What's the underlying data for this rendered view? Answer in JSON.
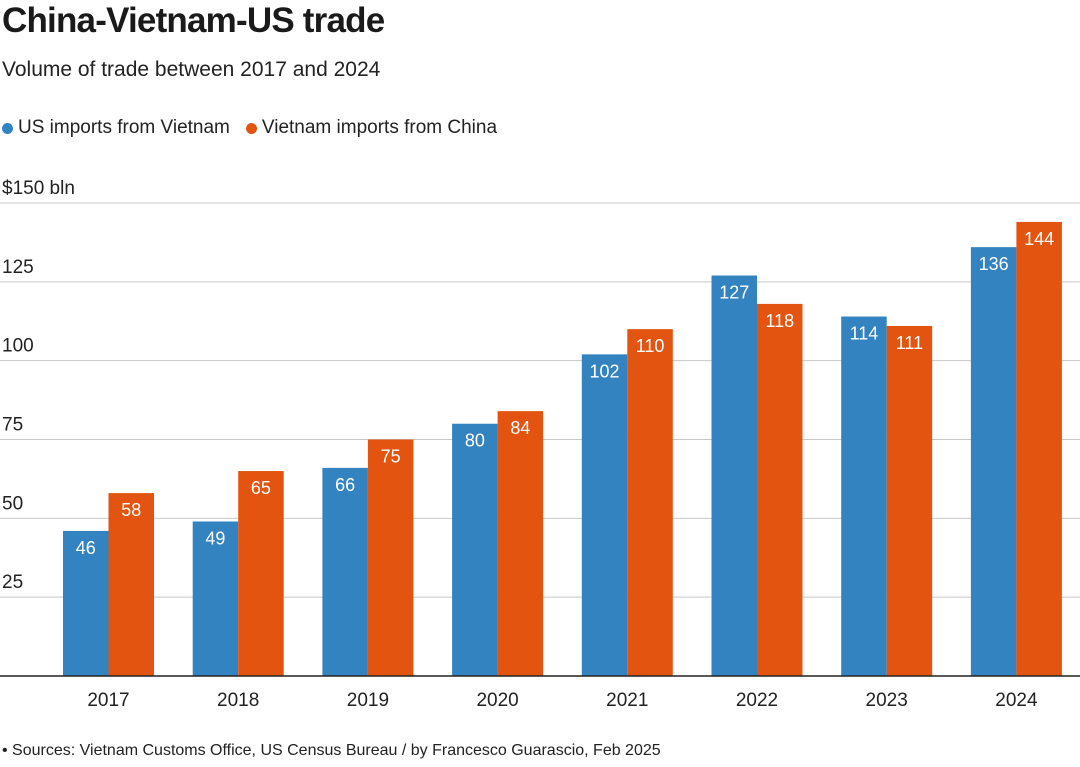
{
  "chart_data": {
    "type": "bar",
    "title": "China-Vietnam-US trade",
    "subtitle": "Volume of trade between 2017 and 2024",
    "categories": [
      "2017",
      "2018",
      "2019",
      "2020",
      "2021",
      "2022",
      "2023",
      "2024"
    ],
    "series": [
      {
        "name": "US imports from Vietnam",
        "color": "#3483c1",
        "values": [
          46,
          49,
          66,
          80,
          102,
          127,
          114,
          136
        ]
      },
      {
        "name": "Vietnam imports from China",
        "color": "#e2540f",
        "values": [
          58,
          65,
          75,
          84,
          110,
          118,
          111,
          144
        ]
      }
    ],
    "y_ticks": [
      {
        "value": 150,
        "label": "$150 bln"
      },
      {
        "value": 125,
        "label": "125"
      },
      {
        "value": 100,
        "label": "100"
      },
      {
        "value": 75,
        "label": "75"
      },
      {
        "value": 50,
        "label": "50"
      },
      {
        "value": 25,
        "label": "25"
      }
    ],
    "ylim": [
      0,
      150
    ],
    "grid": true,
    "legend_position": "top-left",
    "source": "• Sources: Vietnam Customs Office, US Census Bureau / by Francesco Guarascio, Feb 2025"
  }
}
